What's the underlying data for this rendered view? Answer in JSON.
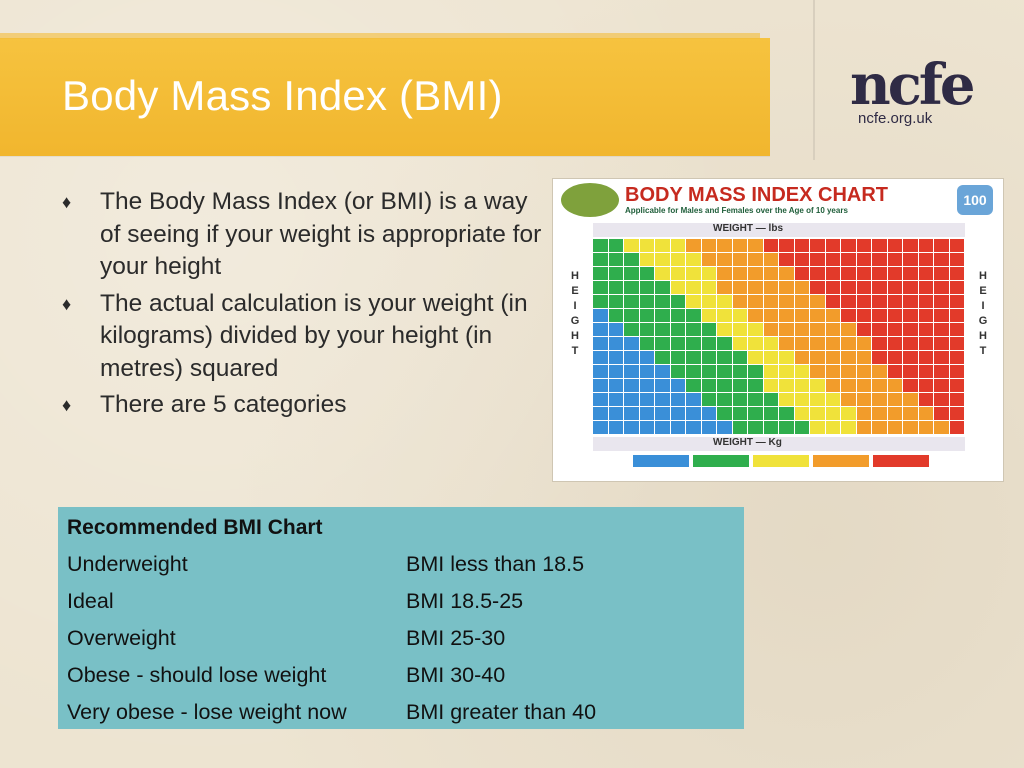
{
  "slide": {
    "title": "Body Mass Index (BMI)",
    "logo": {
      "word": "ncfe",
      "url": "ncfe.org.uk"
    },
    "bullets": [
      "The Body Mass Index (or BMI) is a way of seeing if your weight is appropriate for your height",
      "The actual calculation is your weight (in kilograms) divided by your height (in metres) squared",
      "There are 5 categories"
    ],
    "bullet_glyph": "♦"
  },
  "chart_image": {
    "title": "BODY MASS INDEX CHART",
    "subtitle": "Applicable for Males and Females over the Age of 10 years",
    "badge": "100",
    "weight_top": "WEIGHT — lbs",
    "weight_bottom": "WEIGHT — Kg",
    "height_label": "HEIGHT",
    "colors": {
      "underweight": "#3a8fd8",
      "healthy": "#2fae4d",
      "overweight": "#f0e23a",
      "obese": "#f29c2b",
      "very_obese": "#e23a2a"
    }
  },
  "table": {
    "heading": "Recommended BMI Chart",
    "rows": [
      {
        "category": "Underweight",
        "range": "BMI less than 18.5"
      },
      {
        "category": "Ideal",
        "range": "BMI 18.5-25"
      },
      {
        "category": "Overweight",
        "range": "BMI 25-30"
      },
      {
        "category": "Obese - should lose weight",
        "range": "BMI 30-40"
      },
      {
        "category": "Very obese - lose weight now",
        "range": "BMI greater than 40"
      }
    ],
    "background": "#79c0c6"
  }
}
